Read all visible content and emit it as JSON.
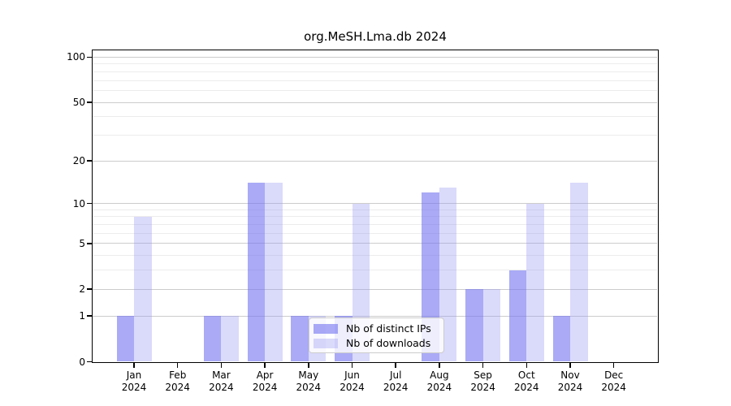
{
  "title": "org.MeSH.Lma.db 2024",
  "chart_data": {
    "type": "bar",
    "title": "org.MeSH.Lma.db 2024",
    "categories": [
      "Jan 2024",
      "Feb 2024",
      "Mar 2024",
      "Apr 2024",
      "May 2024",
      "Jun 2024",
      "Jul 2024",
      "Aug 2024",
      "Sep 2024",
      "Oct 2024",
      "Nov 2024",
      "Dec 2024"
    ],
    "series": [
      {
        "name": "Nb of distinct IPs",
        "color": "rgba(113,113,240,0.60)",
        "values": [
          1,
          0,
          1,
          14,
          1,
          1,
          0,
          12,
          2,
          3,
          1,
          0
        ]
      },
      {
        "name": "Nb of downloads",
        "color": "rgba(150,150,243,0.35)",
        "values": [
          8,
          0,
          1,
          14,
          1,
          10,
          0,
          13,
          2,
          10,
          14,
          0
        ]
      }
    ],
    "y_scale": "log10(1+v)",
    "y_ticks": [
      0,
      1,
      2,
      5,
      10,
      20,
      50,
      100
    ],
    "y_minor_ticks": [
      3,
      4,
      6,
      7,
      8,
      9,
      30,
      40,
      60,
      70,
      80,
      90
    ],
    "ylim": [
      0,
      111
    ],
    "xlabel": "",
    "ylabel": "",
    "grid": true,
    "legend_position": "bottom-center-inside",
    "colors": {
      "major_grid": "#cccccc",
      "minor_grid": "#ececec",
      "spine": "#000000",
      "background": "#ffffff"
    }
  }
}
